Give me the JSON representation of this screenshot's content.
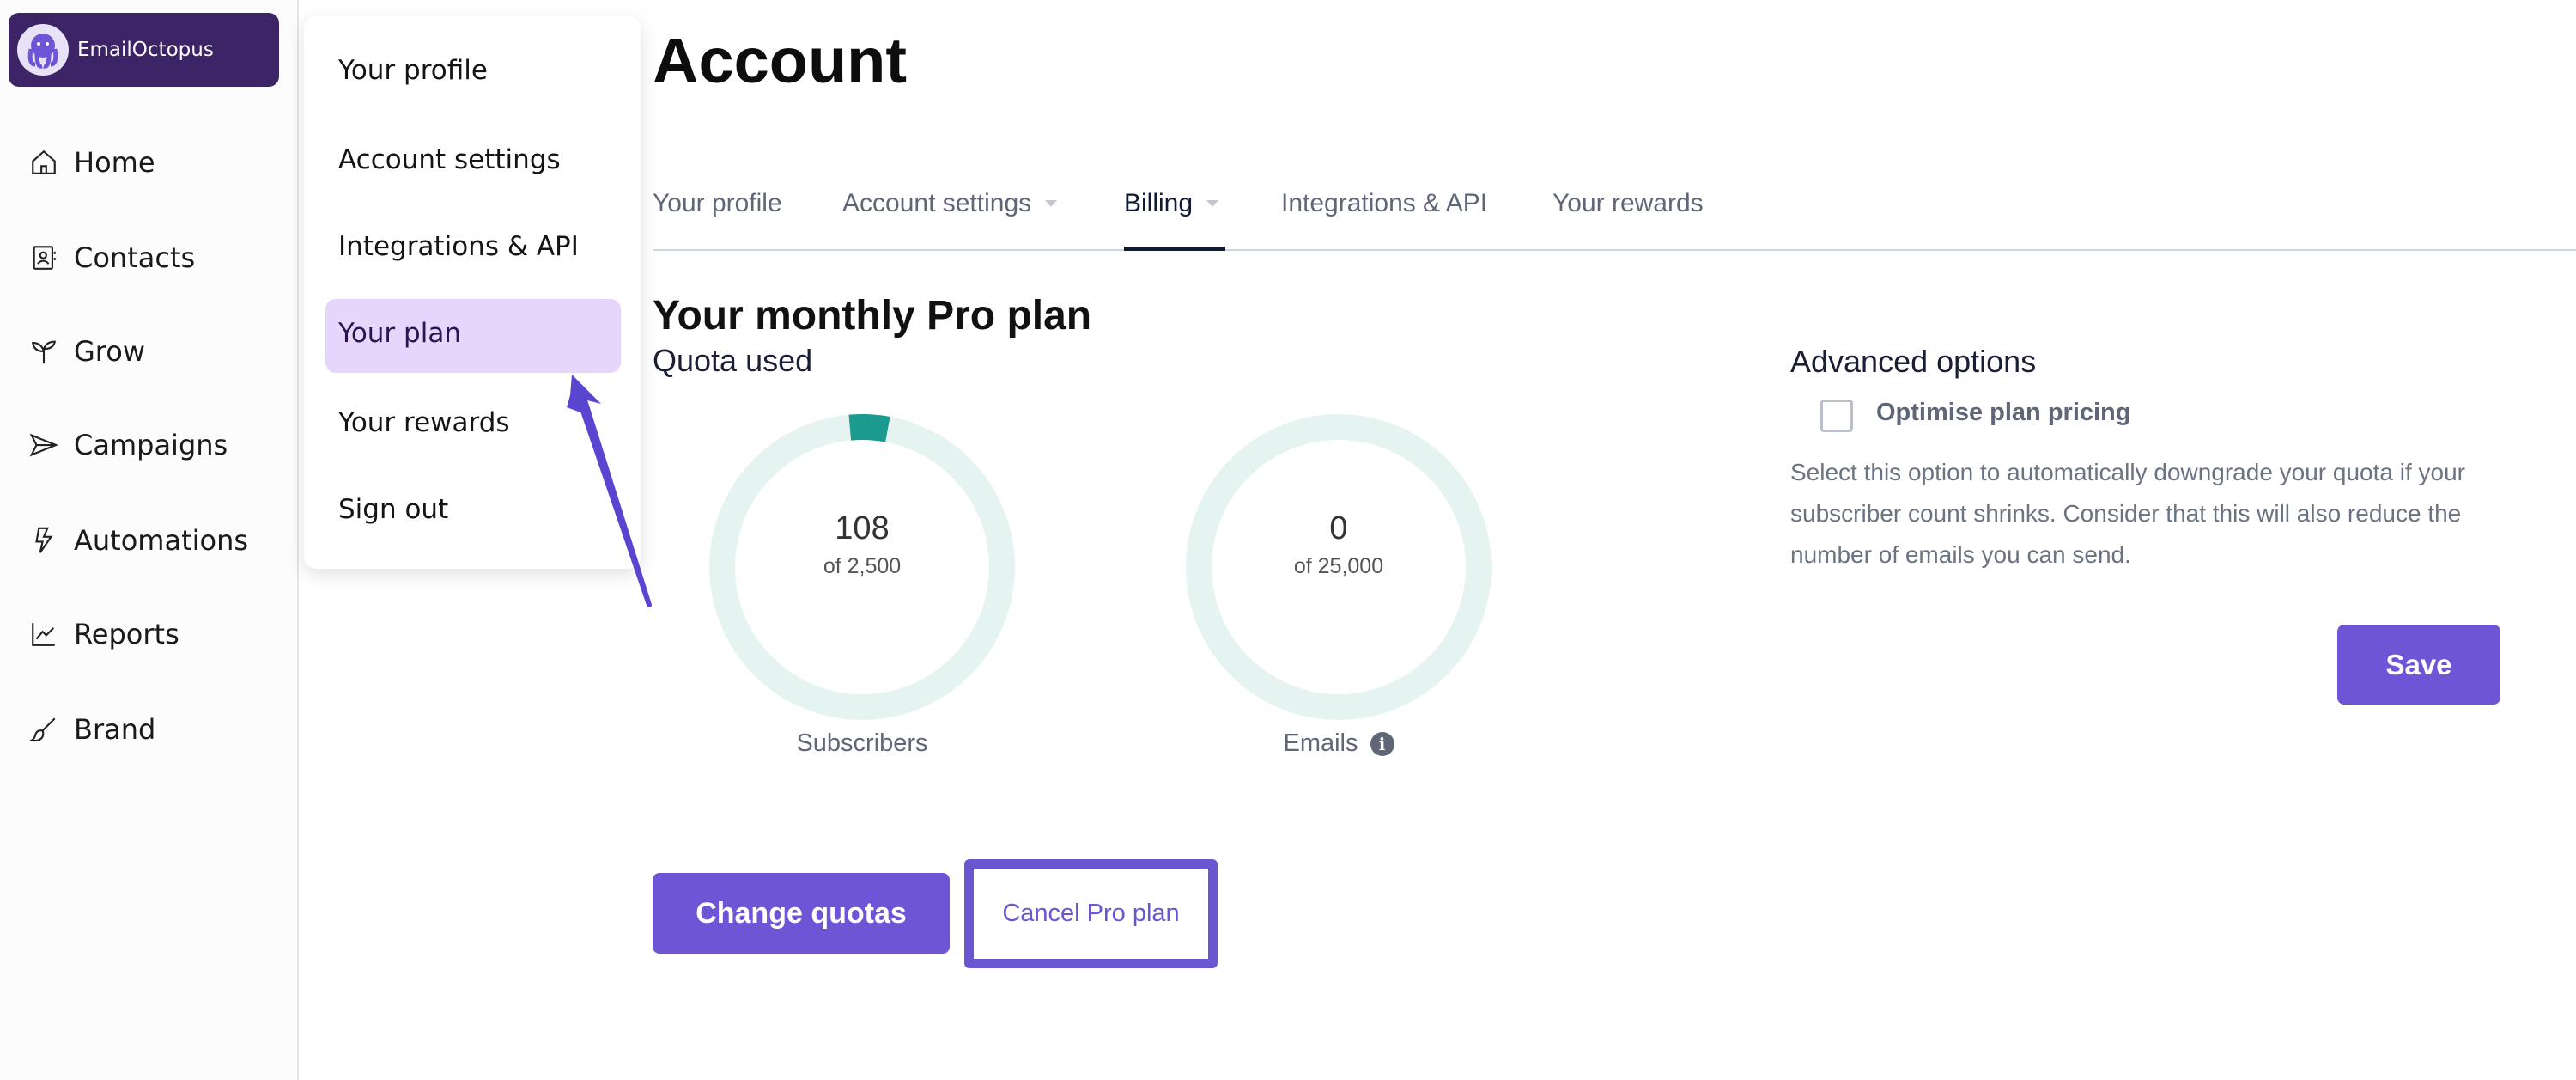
{
  "brand": {
    "name": "EmailOctopus",
    "color": "#3d2466"
  },
  "sidebar": {
    "items": [
      {
        "label": "Home",
        "icon": "home-icon"
      },
      {
        "label": "Contacts",
        "icon": "contacts-icon"
      },
      {
        "label": "Grow",
        "icon": "sprout-icon"
      },
      {
        "label": "Campaigns",
        "icon": "send-icon"
      },
      {
        "label": "Automations",
        "icon": "lightning-icon"
      },
      {
        "label": "Reports",
        "icon": "chart-line-icon"
      },
      {
        "label": "Brand",
        "icon": "brush-icon"
      }
    ]
  },
  "account_menu": {
    "items": [
      {
        "label": "Your profile"
      },
      {
        "label": "Account settings"
      },
      {
        "label": "Integrations & API"
      },
      {
        "label": "Your plan",
        "highlighted": true
      },
      {
        "label": "Your rewards"
      },
      {
        "label": "Sign out"
      }
    ]
  },
  "page": {
    "title": "Account"
  },
  "tabs": [
    {
      "label": "Your profile"
    },
    {
      "label": "Account settings",
      "dropdown": true
    },
    {
      "label": "Billing",
      "dropdown": true,
      "active": true
    },
    {
      "label": "Integrations & API"
    },
    {
      "label": "Your rewards"
    }
  ],
  "plan": {
    "heading": "Your monthly Pro plan",
    "quota_heading": "Quota used",
    "quotas": [
      {
        "label": "Subscribers",
        "value": "108",
        "of": "of 2,500",
        "used": 108,
        "total": 2500
      },
      {
        "label": "Emails",
        "value": "0",
        "of": "of 25,000",
        "used": 0,
        "total": 25000,
        "info_icon": "info-icon"
      }
    ],
    "change_label": "Change quotas",
    "cancel_label": "Cancel Pro plan"
  },
  "advanced": {
    "heading": "Advanced options",
    "checkbox_label": "Optimise plan pricing",
    "checked": false,
    "description": "Select this option to automatically downgrade your quota if your subscriber count shrinks. Consider that this will also reduce the number of emails you can send.",
    "save_label": "Save"
  },
  "colors": {
    "accent": "#6e55d6",
    "donut_track": "#e6f4f1",
    "donut_fill": "#1b9a90",
    "menu_highlight": "#e5d7fb"
  }
}
